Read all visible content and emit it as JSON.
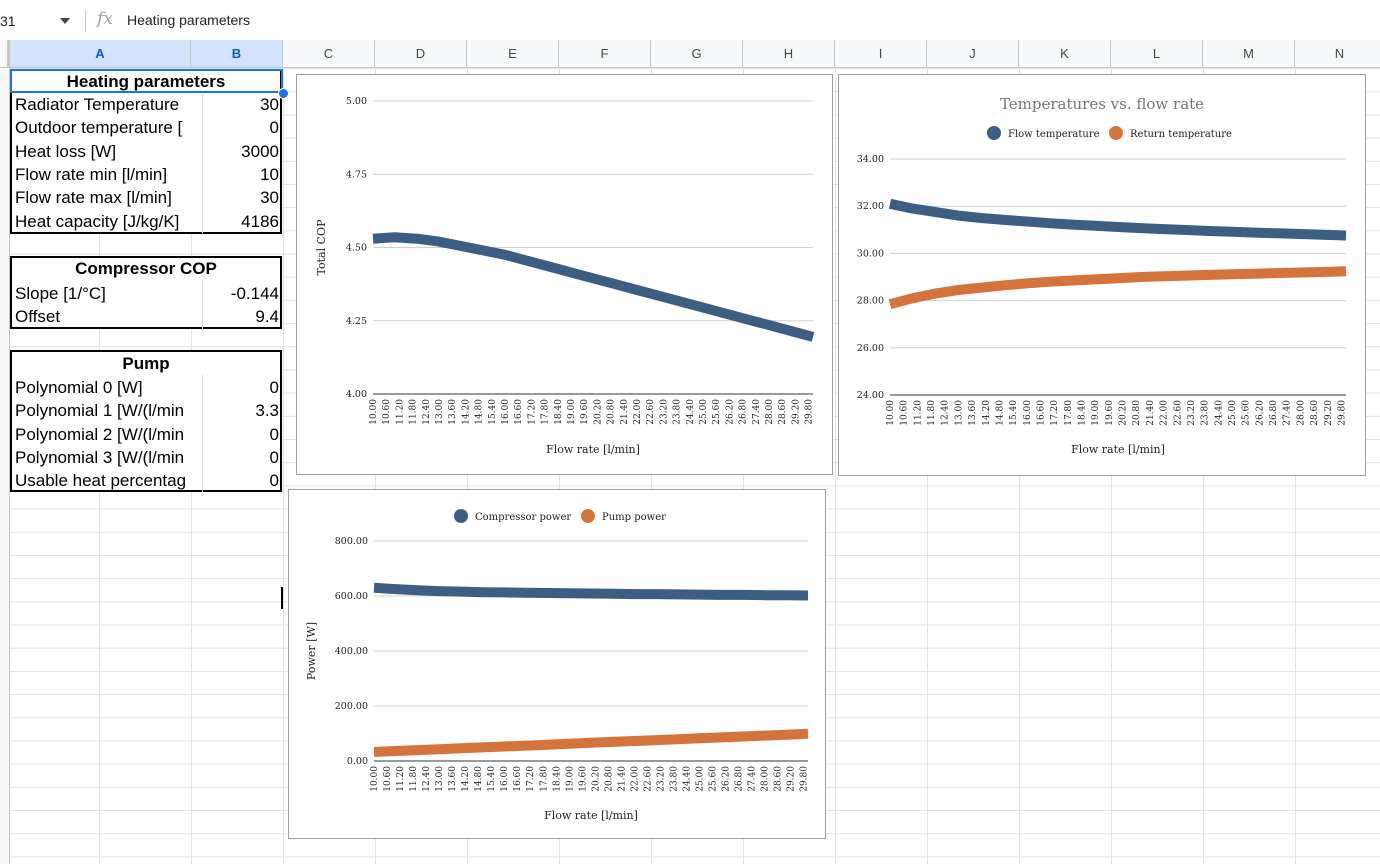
{
  "formula_bar": {
    "name_box": "31",
    "fx": "fx",
    "formula": "Heating parameters"
  },
  "columns": [
    "A",
    "B",
    "C",
    "D",
    "E",
    "F",
    "G",
    "H",
    "I",
    "J",
    "K",
    "L",
    "M",
    "N"
  ],
  "sheet": {
    "heating": {
      "title": "Heating parameters",
      "rows": [
        {
          "label": "Radiator Temperature",
          "value": "30"
        },
        {
          "label": "Outdoor temperature [",
          "value": "0"
        },
        {
          "label": "Heat loss [W]",
          "value": "3000"
        },
        {
          "label": "Flow rate min [l/min]",
          "value": "10"
        },
        {
          "label": "Flow rate max [l/min]",
          "value": "30"
        },
        {
          "label": "Heat capacity [J/kg/K]",
          "value": "4186"
        }
      ]
    },
    "compressor": {
      "title": "Compressor COP",
      "rows": [
        {
          "label": "Slope [1/°C]",
          "value": "-0.144"
        },
        {
          "label": "Offset",
          "value": "9.4"
        }
      ]
    },
    "pump": {
      "title": "Pump",
      "rows": [
        {
          "label": "Polynomial 0 [W]",
          "value": "0"
        },
        {
          "label": "Polynomial 1 [W/(l/min",
          "value": "3.3"
        },
        {
          "label": "Polynomial 2 [W/(l/min",
          "value": "0"
        },
        {
          "label": "Polynomial 3 [W/(l/min",
          "value": "0"
        },
        {
          "label": "Usable heat percentag",
          "value": "0"
        }
      ]
    }
  },
  "chart_data": [
    {
      "type": "line",
      "title": "",
      "xlabel": "Flow rate [l/min]",
      "ylabel": "Total COP",
      "ylim": [
        4.0,
        5.0
      ],
      "yticks": [
        "4.00",
        "4.25",
        "4.50",
        "4.75",
        "5.00"
      ],
      "xlim": [
        10.0,
        30.0
      ],
      "x_tick_step": 0.6,
      "legend": "none",
      "series": [
        {
          "color": "#3b5e82",
          "x": [
            10,
            11,
            12,
            13,
            14,
            15,
            16,
            17,
            18,
            19,
            20,
            21,
            22,
            23,
            24,
            25,
            26,
            27,
            28,
            29,
            30
          ],
          "y": [
            4.53,
            4.535,
            4.53,
            4.52,
            4.505,
            4.49,
            4.475,
            4.455,
            4.435,
            4.415,
            4.395,
            4.375,
            4.355,
            4.335,
            4.315,
            4.295,
            4.275,
            4.255,
            4.235,
            4.215,
            4.195
          ]
        }
      ]
    },
    {
      "type": "line",
      "title": "Temperatures vs. flow rate",
      "xlabel": "Flow rate [l/min]",
      "ylabel": "",
      "ylim": [
        24,
        34
      ],
      "yticks": [
        "24.00",
        "26.00",
        "28.00",
        "30.00",
        "32.00",
        "34.00"
      ],
      "xlim": [
        10.0,
        30.0
      ],
      "x_tick_step": 0.6,
      "legend": "top",
      "series": [
        {
          "name": "Flow temperature",
          "color": "#3b5e82",
          "x": [
            10,
            11,
            12,
            13,
            14,
            15,
            16,
            17,
            18,
            19,
            20,
            21,
            22,
            23,
            24,
            25,
            26,
            27,
            28,
            29,
            30
          ],
          "y": [
            32.1,
            31.9,
            31.75,
            31.6,
            31.5,
            31.42,
            31.35,
            31.28,
            31.22,
            31.17,
            31.12,
            31.07,
            31.03,
            30.99,
            30.95,
            30.92,
            30.88,
            30.85,
            30.82,
            30.79,
            30.76
          ]
        },
        {
          "name": "Return temperature",
          "color": "#d4733b",
          "x": [
            10,
            11,
            12,
            13,
            14,
            15,
            16,
            17,
            18,
            19,
            20,
            21,
            22,
            23,
            24,
            25,
            26,
            27,
            28,
            29,
            30
          ],
          "y": [
            27.85,
            28.1,
            28.3,
            28.45,
            28.55,
            28.65,
            28.73,
            28.8,
            28.85,
            28.9,
            28.95,
            29.0,
            29.03,
            29.06,
            29.09,
            29.12,
            29.14,
            29.17,
            29.19,
            29.21,
            29.24
          ]
        }
      ]
    },
    {
      "type": "line",
      "title": "",
      "xlabel": "Flow rate [l/min]",
      "ylabel": "Power [W]",
      "ylim": [
        0,
        800
      ],
      "yticks": [
        "0.00",
        "200.00",
        "400.00",
        "600.00",
        "800.00"
      ],
      "xlim": [
        10.0,
        30.0
      ],
      "x_tick_step": 0.6,
      "legend": "top",
      "series": [
        {
          "name": "Compressor power",
          "color": "#3b5e82",
          "x": [
            10,
            11,
            12,
            13,
            14,
            15,
            16,
            17,
            18,
            19,
            20,
            21,
            22,
            23,
            24,
            25,
            26,
            27,
            28,
            29,
            30
          ],
          "y": [
            630,
            625,
            621,
            618,
            616,
            614,
            613,
            612,
            611,
            610,
            609,
            608,
            607,
            607,
            606,
            605,
            604,
            604,
            603,
            603,
            602
          ]
        },
        {
          "name": "Pump power",
          "color": "#d4733b",
          "x": [
            10,
            11,
            12,
            13,
            14,
            15,
            16,
            17,
            18,
            19,
            20,
            21,
            22,
            23,
            24,
            25,
            26,
            27,
            28,
            29,
            30
          ],
          "y": [
            33,
            36.3,
            39.6,
            42.9,
            46.2,
            49.5,
            52.8,
            56.1,
            59.4,
            62.7,
            66,
            69.3,
            72.6,
            75.9,
            79.2,
            82.5,
            85.8,
            89.1,
            92.4,
            95.7,
            99
          ]
        }
      ]
    }
  ]
}
